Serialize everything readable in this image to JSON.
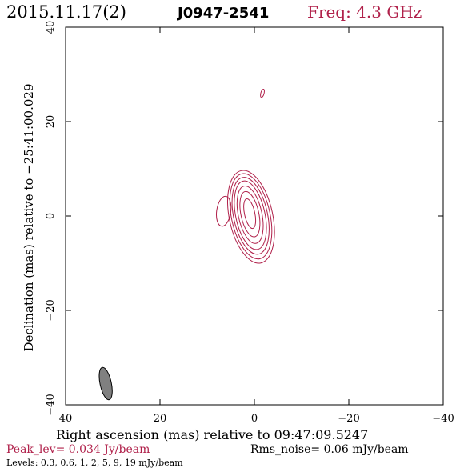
{
  "header": {
    "date": "2015.11.17(2)",
    "source": "J0947-2541",
    "freq": "Freq: 4.3 GHz"
  },
  "footer": {
    "peak": "Peak_lev=  0.034 Jy/beam",
    "rms": "Rms_noise= 0.06 mJy/beam",
    "levels": "Levels: 0.3, 0.6,    1,    2,    5,    9,   19 mJy/beam"
  },
  "colors": {
    "accent": "#b0204a",
    "contour": "#b0204a",
    "beam": "#808080",
    "axis": "#000000"
  },
  "chart_data": {
    "type": "contour",
    "xlabel": "Right ascension (mas) relative to 09:47:09.5247",
    "ylabel": "Declination (mas) relative to −25:41:00.029",
    "xlim": [
      40,
      -40
    ],
    "ylim": [
      -40,
      40
    ],
    "xticks": [
      40,
      20,
      0,
      -20,
      -40
    ],
    "yticks": [
      -40,
      -20,
      0,
      20,
      40
    ],
    "xtick_labels": [
      "40",
      "20",
      "0",
      "−20",
      "−40"
    ],
    "ytick_labels": [
      "−40",
      "−20",
      "0",
      "20",
      "40"
    ],
    "levels_mJy": [
      0.3,
      0.6,
      1,
      2,
      5,
      9,
      19
    ],
    "core": {
      "cx": 1.0,
      "cy": 0.5,
      "angle_deg": -12,
      "contours": [
        {
          "level": 0.3,
          "rx": 4.6,
          "ry": 10.0
        },
        {
          "level": 0.6,
          "rx": 4.1,
          "ry": 9.2
        },
        {
          "level": 1,
          "rx": 3.6,
          "ry": 8.3
        },
        {
          "level": 2,
          "rx": 3.1,
          "ry": 7.4
        },
        {
          "level": 5,
          "rx": 2.5,
          "ry": 6.2
        },
        {
          "level": 9,
          "rx": 1.9,
          "ry": 4.9
        },
        {
          "level": 19,
          "rx": 1.1,
          "ry": 3.2
        }
      ]
    },
    "blobs": [
      {
        "cx": 6.5,
        "cy": 1.0,
        "rx": 1.5,
        "ry": 3.2,
        "angle_deg": 8
      },
      {
        "cx": -1.7,
        "cy": 26.0,
        "rx": 0.35,
        "ry": 0.9,
        "angle_deg": 15
      }
    ],
    "beam": {
      "cx": 31.5,
      "cy": -35.5,
      "rx": 1.2,
      "ry": 3.5,
      "angle_deg": -12
    }
  }
}
